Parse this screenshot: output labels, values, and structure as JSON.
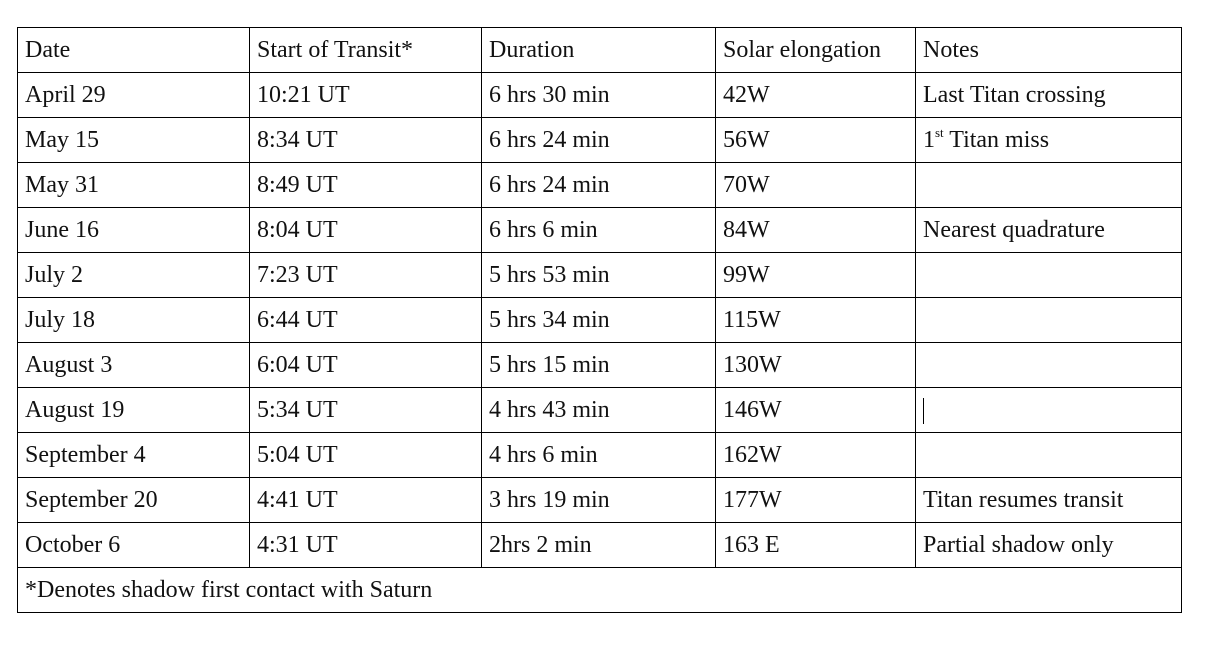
{
  "table": {
    "headers": [
      "Date",
      "Start of Transit*",
      "Duration",
      "Solar elongation",
      "Notes"
    ],
    "rows": [
      [
        "April 29",
        "10:21 UT",
        "6 hrs 30 min",
        "42W",
        "Last Titan crossing"
      ],
      [
        "May 15",
        "8:34 UT",
        "6 hrs 24 min",
        "56W",
        {
          "base": "1",
          "sup": "st",
          "text": "Titan miss"
        }
      ],
      [
        "May 31",
        "8:49 UT",
        "6 hrs 24 min",
        "70W",
        null
      ],
      [
        "June 16",
        "8:04 UT",
        "6 hrs 6 min",
        "84W",
        "Nearest quadrature"
      ],
      [
        "July 2",
        "7:23 UT",
        "5 hrs 53 min",
        "99W",
        null
      ],
      [
        "July 18",
        "6:44 UT",
        "5 hrs 34 min",
        "115W",
        null
      ],
      [
        "August 3",
        "6:04 UT",
        "5 hrs 15 min",
        "130W",
        null
      ],
      [
        "August 19",
        "5:34 UT",
        "4 hrs 43 min",
        "146W",
        null
      ],
      [
        "September 4",
        "5:04 UT",
        "4 hrs 6 min",
        "162W",
        null
      ],
      [
        "September 20",
        "4:41 UT",
        "3 hrs 19 min",
        "177W",
        "Titan resumes transit"
      ],
      [
        "October 6",
        "4:31 UT",
        "2hrs 2 min",
        "163 E",
        "Partial shadow only"
      ]
    ],
    "footnote": "*Denotes shadow first contact with Saturn"
  }
}
